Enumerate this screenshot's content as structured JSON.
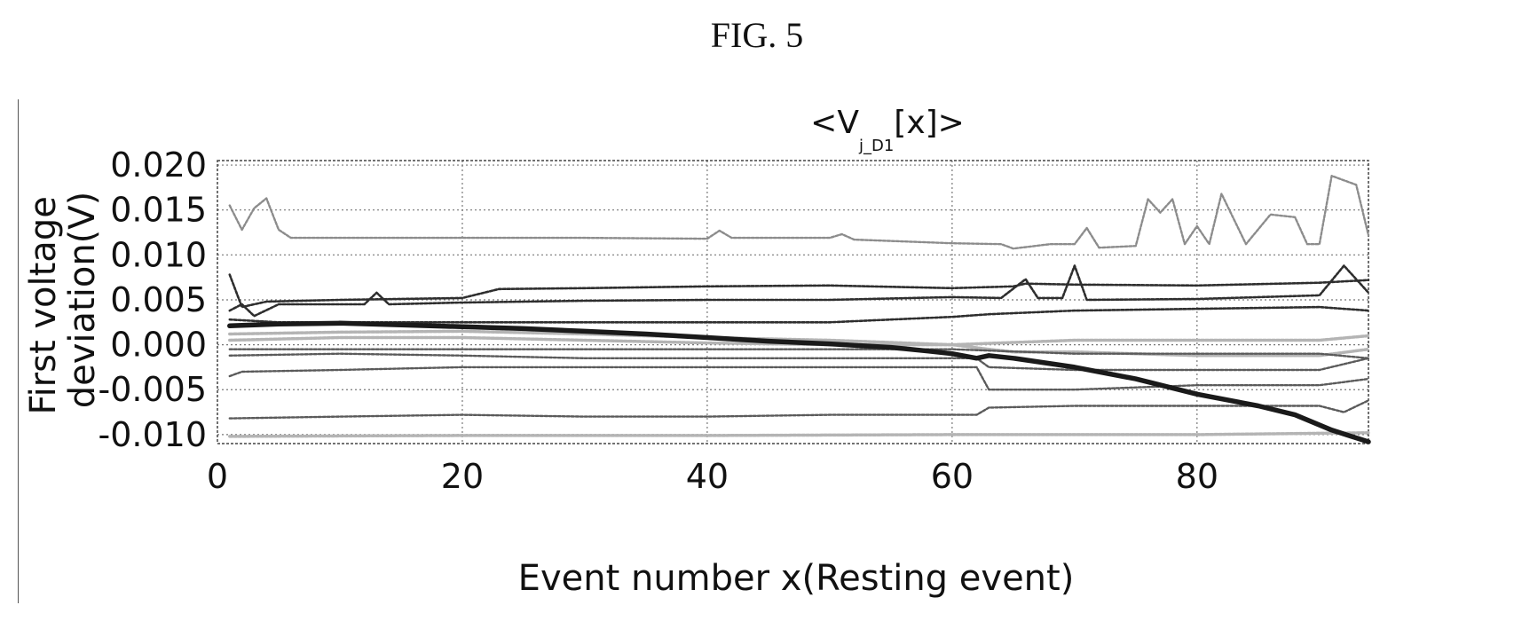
{
  "figure": {
    "caption": "FIG. 5"
  },
  "chart_data": {
    "type": "line",
    "title": {
      "prefix": "<V",
      "subscript": "j_D1",
      "suffix": "[x]>"
    },
    "xlabel": "Event number x(Resting event)",
    "ylabel": [
      "First voltage",
      "deviation(V)"
    ],
    "xlim": [
      0,
      94
    ],
    "ylim": [
      -0.011,
      0.0205
    ],
    "xticks": [
      0,
      20,
      40,
      60,
      80
    ],
    "yticks": [
      -0.01,
      -0.005,
      0.0,
      0.005,
      0.01,
      0.015,
      0.02
    ],
    "xtick_labels": [
      "0",
      "20",
      "40",
      "60",
      "80"
    ],
    "ytick_labels": [
      "-0.010",
      "-0.005",
      "0.000",
      "0.005",
      "0.010",
      "0.015",
      "0.020"
    ],
    "grid": true,
    "legend": false,
    "colors": {
      "highlight": "#1a1a1a",
      "dark": "#2e2e2e",
      "mid": "#5a5a5a",
      "light": "#8c8c8c",
      "faint": "#b4b4b4"
    },
    "series": [
      {
        "style": "light",
        "points": [
          [
            1,
            0.0155
          ],
          [
            2,
            0.0128
          ],
          [
            3,
            0.0152
          ],
          [
            4,
            0.0163
          ],
          [
            5,
            0.0128
          ],
          [
            6,
            0.0119
          ],
          [
            10,
            0.0119
          ],
          [
            20,
            0.0119
          ],
          [
            30,
            0.0119
          ],
          [
            40,
            0.0118
          ],
          [
            41,
            0.0127
          ],
          [
            42,
            0.0119
          ],
          [
            50,
            0.0119
          ],
          [
            51,
            0.0123
          ],
          [
            52,
            0.0117
          ],
          [
            60,
            0.0113
          ],
          [
            64,
            0.0112
          ],
          [
            65,
            0.0107
          ],
          [
            68,
            0.0112
          ],
          [
            70,
            0.0112
          ],
          [
            71,
            0.013
          ],
          [
            72,
            0.0108
          ],
          [
            75,
            0.011
          ],
          [
            76,
            0.0162
          ],
          [
            77,
            0.0147
          ],
          [
            78,
            0.0162
          ],
          [
            79,
            0.0112
          ],
          [
            80,
            0.0132
          ],
          [
            81,
            0.0112
          ],
          [
            82,
            0.0168
          ],
          [
            84,
            0.0112
          ],
          [
            86,
            0.0145
          ],
          [
            88,
            0.0142
          ],
          [
            89,
            0.0112
          ],
          [
            90,
            0.0112
          ],
          [
            91,
            0.0188
          ],
          [
            93,
            0.0178
          ],
          [
            94,
            0.0122
          ]
        ]
      },
      {
        "style": "dark",
        "points": [
          [
            1,
            0.0078
          ],
          [
            2,
            0.0042
          ],
          [
            3,
            0.0045
          ],
          [
            4,
            0.0048
          ],
          [
            10,
            0.005
          ],
          [
            20,
            0.0052
          ],
          [
            23,
            0.0062
          ],
          [
            30,
            0.0063
          ],
          [
            40,
            0.0065
          ],
          [
            50,
            0.0066
          ],
          [
            60,
            0.0063
          ],
          [
            65,
            0.0065
          ],
          [
            66,
            0.0068
          ],
          [
            70,
            0.0067
          ],
          [
            80,
            0.0066
          ],
          [
            90,
            0.0069
          ],
          [
            94,
            0.0072
          ]
        ]
      },
      {
        "style": "dark",
        "points": [
          [
            1,
            0.0038
          ],
          [
            2,
            0.0045
          ],
          [
            3,
            0.0032
          ],
          [
            5,
            0.0045
          ],
          [
            11,
            0.0045
          ],
          [
            12,
            0.0045
          ],
          [
            13,
            0.0058
          ],
          [
            14,
            0.0045
          ],
          [
            20,
            0.0047
          ],
          [
            30,
            0.0049
          ],
          [
            40,
            0.005
          ],
          [
            50,
            0.005
          ],
          [
            60,
            0.0053
          ],
          [
            64,
            0.0052
          ],
          [
            66,
            0.0073
          ],
          [
            67,
            0.0052
          ],
          [
            69,
            0.0052
          ],
          [
            70,
            0.0088
          ],
          [
            71,
            0.005
          ],
          [
            80,
            0.0051
          ],
          [
            90,
            0.0055
          ],
          [
            92,
            0.0088
          ],
          [
            94,
            0.0058
          ]
        ]
      },
      {
        "style": "dark",
        "points": [
          [
            1,
            0.0028
          ],
          [
            5,
            0.0025
          ],
          [
            10,
            0.0025
          ],
          [
            20,
            0.0025
          ],
          [
            30,
            0.0025
          ],
          [
            40,
            0.0025
          ],
          [
            50,
            0.0025
          ],
          [
            55,
            0.0028
          ],
          [
            60,
            0.0031
          ],
          [
            63,
            0.0034
          ],
          [
            70,
            0.0038
          ],
          [
            80,
            0.004
          ],
          [
            90,
            0.0042
          ],
          [
            94,
            0.0038
          ]
        ]
      },
      {
        "style": "faint",
        "points": [
          [
            1,
            0.0012
          ],
          [
            10,
            0.0014
          ],
          [
            20,
            0.0015
          ],
          [
            30,
            0.0012
          ],
          [
            40,
            0.0008
          ],
          [
            50,
            0.0005
          ],
          [
            60,
            0.0
          ],
          [
            63,
            -0.0005
          ],
          [
            65,
            -0.0008
          ],
          [
            70,
            -0.0008
          ],
          [
            80,
            -0.0012
          ],
          [
            90,
            -0.0012
          ],
          [
            94,
            -0.0005
          ]
        ]
      },
      {
        "style": "faint",
        "points": [
          [
            1,
            0.0005
          ],
          [
            10,
            0.0008
          ],
          [
            20,
            0.0008
          ],
          [
            30,
            0.0005
          ],
          [
            40,
            0.0002
          ],
          [
            50,
            0.0
          ],
          [
            60,
            0.0
          ],
          [
            70,
            0.0005
          ],
          [
            80,
            0.0005
          ],
          [
            90,
            0.0005
          ],
          [
            94,
            0.001
          ]
        ]
      },
      {
        "style": "mid",
        "points": [
          [
            1,
            -0.0005
          ],
          [
            10,
            -0.0005
          ],
          [
            20,
            -0.0005
          ],
          [
            30,
            -0.0005
          ],
          [
            40,
            -0.0005
          ],
          [
            50,
            -0.0005
          ],
          [
            60,
            -0.0005
          ],
          [
            70,
            -0.001
          ],
          [
            80,
            -0.001
          ],
          [
            90,
            -0.001
          ],
          [
            94,
            -0.0015
          ]
        ]
      },
      {
        "style": "mid",
        "points": [
          [
            1,
            -0.0012
          ],
          [
            10,
            -0.001
          ],
          [
            20,
            -0.0012
          ],
          [
            30,
            -0.0015
          ],
          [
            40,
            -0.0015
          ],
          [
            50,
            -0.0015
          ],
          [
            60,
            -0.0015
          ],
          [
            62,
            -0.0015
          ],
          [
            63,
            -0.0025
          ],
          [
            70,
            -0.0028
          ],
          [
            80,
            -0.0028
          ],
          [
            90,
            -0.0028
          ],
          [
            94,
            -0.0015
          ]
        ]
      },
      {
        "style": "mid",
        "points": [
          [
            1,
            -0.0035
          ],
          [
            2,
            -0.003
          ],
          [
            10,
            -0.0028
          ],
          [
            20,
            -0.0025
          ],
          [
            30,
            -0.0025
          ],
          [
            40,
            -0.0025
          ],
          [
            50,
            -0.0025
          ],
          [
            60,
            -0.0025
          ],
          [
            62,
            -0.0025
          ],
          [
            63,
            -0.005
          ],
          [
            70,
            -0.005
          ],
          [
            80,
            -0.0045
          ],
          [
            90,
            -0.0045
          ],
          [
            94,
            -0.0038
          ]
        ]
      },
      {
        "style": "mid",
        "points": [
          [
            1,
            -0.0082
          ],
          [
            10,
            -0.008
          ],
          [
            20,
            -0.0078
          ],
          [
            30,
            -0.008
          ],
          [
            40,
            -0.008
          ],
          [
            50,
            -0.0078
          ],
          [
            60,
            -0.0078
          ],
          [
            62,
            -0.0078
          ],
          [
            63,
            -0.007
          ],
          [
            70,
            -0.0068
          ],
          [
            80,
            -0.0068
          ],
          [
            90,
            -0.0068
          ],
          [
            92,
            -0.0075
          ],
          [
            94,
            -0.0062
          ]
        ]
      },
      {
        "style": "faint",
        "points": [
          [
            1,
            -0.0102
          ],
          [
            20,
            -0.0101
          ],
          [
            40,
            -0.0101
          ],
          [
            60,
            -0.01
          ],
          [
            80,
            -0.01
          ],
          [
            94,
            -0.0098
          ]
        ]
      },
      {
        "style": "highlight",
        "points": [
          [
            1,
            0.0021
          ],
          [
            3,
            0.0022
          ],
          [
            5,
            0.0023
          ],
          [
            10,
            0.0024
          ],
          [
            15,
            0.0022
          ],
          [
            20,
            0.002
          ],
          [
            25,
            0.0018
          ],
          [
            30,
            0.0015
          ],
          [
            35,
            0.0012
          ],
          [
            40,
            0.0008
          ],
          [
            45,
            0.0004
          ],
          [
            50,
            0.0001
          ],
          [
            55,
            -0.0003
          ],
          [
            58,
            -0.0007
          ],
          [
            60,
            -0.001
          ],
          [
            62,
            -0.0015
          ],
          [
            63,
            -0.0012
          ],
          [
            65,
            -0.0015
          ],
          [
            70,
            -0.0025
          ],
          [
            75,
            -0.0038
          ],
          [
            80,
            -0.0055
          ],
          [
            85,
            -0.0068
          ],
          [
            88,
            -0.0078
          ],
          [
            91,
            -0.0095
          ],
          [
            94,
            -0.0108
          ]
        ]
      }
    ]
  }
}
